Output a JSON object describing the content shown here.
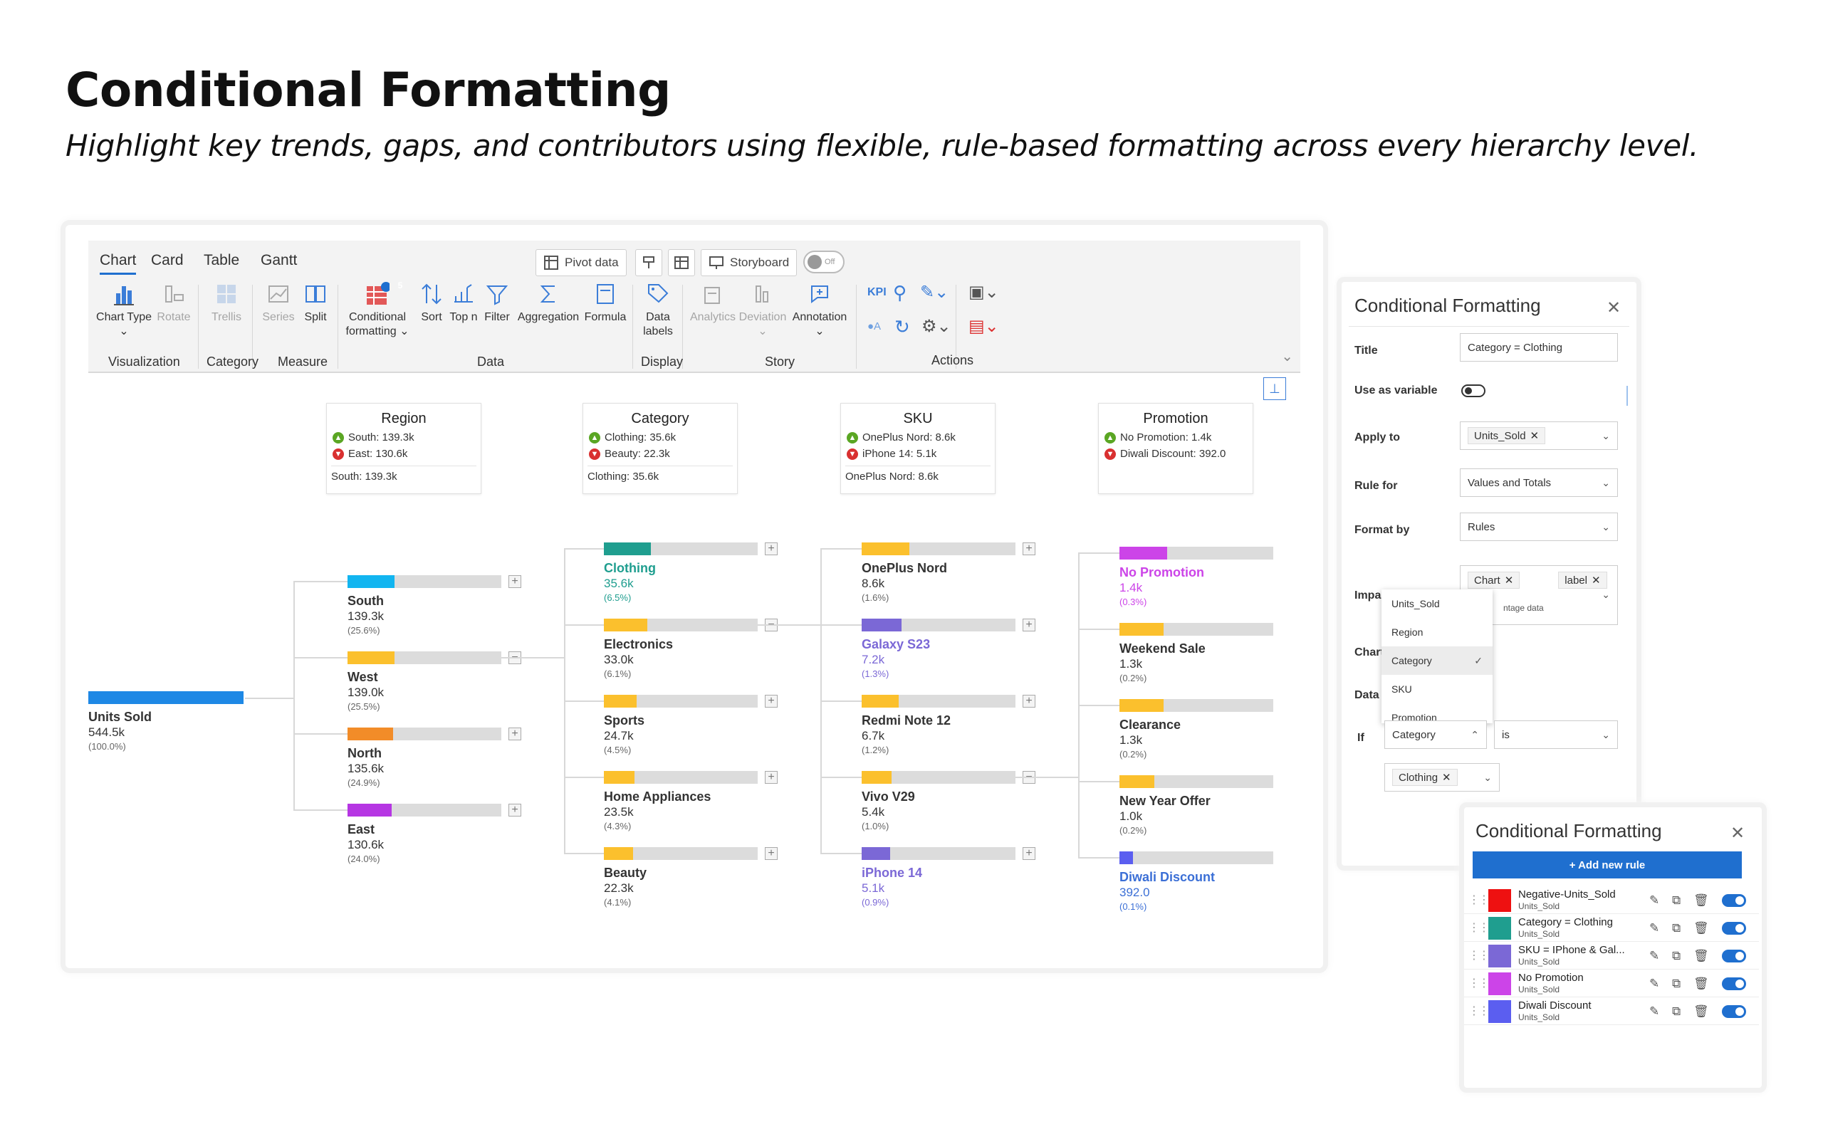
{
  "title": "Conditional Formatting",
  "subtitle": "Highlight key trends, gaps, and contributors using flexible, rule-based formatting across every hierarchy level.",
  "toolbar": {
    "tabs": [
      "Chart",
      "Card",
      "Table",
      "Gantt"
    ],
    "pivot_label": "Pivot data",
    "storyboard_label": "Storyboard",
    "toggle_label": "Off",
    "cf_badge": "5",
    "tools": {
      "chart_type": "Chart Type",
      "rotate": "Rotate",
      "trellis": "Trellis",
      "series": "Series",
      "split": "Split",
      "conditional": "Conditional",
      "formatting": "formatting",
      "sort": "Sort",
      "topn": "Top n",
      "filter": "Filter",
      "aggregation": "Aggregation",
      "formula": "Formula",
      "data": "Data",
      "labels": "labels",
      "analytics": "Analytics",
      "deviation": "Deviation",
      "annotation": "Annotation",
      "kpi": "KPI"
    },
    "groups": {
      "visualization": "Visualization",
      "category": "Category",
      "measure": "Measure",
      "data": "Data",
      "display": "Display",
      "story": "Story",
      "actions": "Actions"
    }
  },
  "header_cards": [
    {
      "title": "Region",
      "up": "South: 139.3k",
      "down": "East: 130.6k",
      "foot": "South: 139.3k"
    },
    {
      "title": "Category",
      "up": "Clothing: 35.6k",
      "down": "Beauty: 22.3k",
      "foot": "Clothing: 35.6k"
    },
    {
      "title": "SKU",
      "up": "OnePlus Nord: 8.6k",
      "down": "iPhone 14: 5.1k",
      "foot": "OnePlus Nord: 8.6k"
    },
    {
      "title": "Promotion",
      "up": "No Promotion: 1.4k",
      "down": "Diwali Discount: 392.0",
      "foot": ""
    }
  ],
  "tree": {
    "root": {
      "label": "Units Sold",
      "value": "544.5k",
      "pct": "(100.0%)",
      "share": 1.0,
      "color": "#1e88e5"
    },
    "region": [
      {
        "label": "South",
        "value": "139.3k",
        "pct": "(25.6%)",
        "share": 0.256,
        "color": "#12b5f0",
        "pm": "+"
      },
      {
        "label": "West",
        "value": "139.0k",
        "pct": "(25.5%)",
        "share": 0.255,
        "color": "#fbc02d",
        "pm": "−"
      },
      {
        "label": "North",
        "value": "135.6k",
        "pct": "(24.9%)",
        "share": 0.249,
        "color": "#f28c28",
        "pm": "+"
      },
      {
        "label": "East",
        "value": "130.6k",
        "pct": "(24.0%)",
        "share": 0.24,
        "color": "#b636e3",
        "pm": "+"
      }
    ],
    "category": [
      {
        "label": "Clothing",
        "value": "35.6k",
        "pct": "(6.5%)",
        "share": 0.255,
        "color": "#1f9e8f",
        "text": "#1f9e8f",
        "pm": "+"
      },
      {
        "label": "Electronics",
        "value": "33.0k",
        "pct": "(6.1%)",
        "share": 0.236,
        "color": "#fbc02d",
        "text": "#333333",
        "pm": "−"
      },
      {
        "label": "Sports",
        "value": "24.7k",
        "pct": "(4.5%)",
        "share": 0.177,
        "color": "#fbc02d",
        "text": "#333333",
        "pm": "+"
      },
      {
        "label": "Home Appliances",
        "value": "23.5k",
        "pct": "(4.3%)",
        "share": 0.168,
        "color": "#fbc02d",
        "text": "#333333",
        "pm": "+"
      },
      {
        "label": "Beauty",
        "value": "22.3k",
        "pct": "(4.1%)",
        "share": 0.16,
        "color": "#fbc02d",
        "text": "#333333",
        "pm": "+"
      }
    ],
    "sku": [
      {
        "label": "OnePlus Nord",
        "value": "8.6k",
        "pct": "(1.6%)",
        "share": 0.26,
        "color": "#fbc02d",
        "text": "#333333",
        "pm": "+"
      },
      {
        "label": "Galaxy S23",
        "value": "7.2k",
        "pct": "(1.3%)",
        "share": 0.218,
        "color": "#7b68d6",
        "text": "#7b68d6",
        "pm": "+"
      },
      {
        "label": "Redmi Note 12",
        "value": "6.7k",
        "pct": "(1.2%)",
        "share": 0.203,
        "color": "#fbc02d",
        "text": "#333333",
        "pm": "+"
      },
      {
        "label": "Vivo V29",
        "value": "5.4k",
        "pct": "(1.0%)",
        "share": 0.164,
        "color": "#fbc02d",
        "text": "#333333",
        "pm": "−"
      },
      {
        "label": "iPhone 14",
        "value": "5.1k",
        "pct": "(0.9%)",
        "share": 0.155,
        "color": "#7b68d6",
        "text": "#7b68d6",
        "pm": "+"
      }
    ],
    "promotion": [
      {
        "label": "No Promotion",
        "value": "1.4k",
        "pct": "(0.3%)",
        "share": 0.26,
        "color": "#cc44e8",
        "text": "#cc44e8"
      },
      {
        "label": "Weekend Sale",
        "value": "1.3k",
        "pct": "(0.2%)",
        "share": 0.24,
        "color": "#fbc02d",
        "text": "#333333"
      },
      {
        "label": "Clearance",
        "value": "1.3k",
        "pct": "(0.2%)",
        "share": 0.24,
        "color": "#fbc02d",
        "text": "#333333"
      },
      {
        "label": "New Year Offer",
        "value": "1.0k",
        "pct": "(0.2%)",
        "share": 0.19,
        "color": "#fbc02d",
        "text": "#333333"
      },
      {
        "label": "Diwali Discount",
        "value": "392.0",
        "pct": "(0.1%)",
        "share": 0.072,
        "color": "#5b5ef0",
        "text": "#3b6fd6"
      }
    ]
  },
  "cf_panel": {
    "title": "Conditional Formatting",
    "fields": {
      "title_label": "Title",
      "title_value": "Category = Clothing",
      "variable_label": "Use as variable",
      "apply_label": "Apply to",
      "apply_chip": "Units_Sold",
      "rule_label": "Rule for",
      "rule_value": "Values and Totals",
      "format_label": "Format by",
      "format_value": "Rules",
      "impacts_label": "Impacts on",
      "impacts_chip1": "Chart",
      "impacts_chip2": "label",
      "impacts_chip3": "ntage data",
      "chart_label": "Chart",
      "data_label": "Data",
      "if_label": "If",
      "if_value": "Category",
      "op_value": "is",
      "value_chip": "Clothing"
    },
    "dropdown": [
      "Units_Sold",
      "Region",
      "Category",
      "SKU",
      "Promotion"
    ]
  },
  "rules_panel": {
    "title": "Conditional Formatting",
    "add_label": "+ Add new rule",
    "rules": [
      {
        "name": "Negative-Units_Sold",
        "target": "Units_Sold",
        "color": "#ee1111"
      },
      {
        "name": "Category = Clothing",
        "target": "Units_Sold",
        "color": "#1f9e8f"
      },
      {
        "name": "SKU = IPhone & Gal...",
        "target": "Units_Sold",
        "color": "#7b68d6"
      },
      {
        "name": "No Promotion",
        "target": "Units_Sold",
        "color": "#cc44e8"
      },
      {
        "name": "Diwali Discount",
        "target": "Units_Sold",
        "color": "#5b5ef0"
      }
    ]
  }
}
